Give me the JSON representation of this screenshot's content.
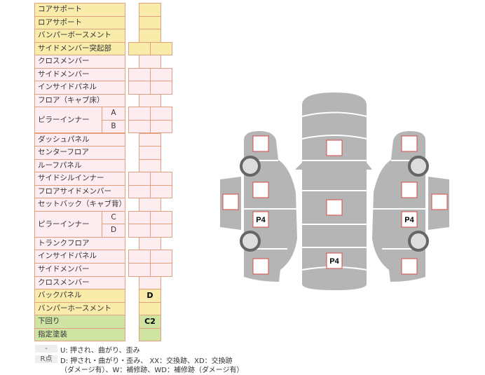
{
  "colors": {
    "yellow": "#f9ebaa",
    "pink": "#fdedf0",
    "green": "#cfe3a3",
    "border": "#e2a07e",
    "body": "#b5b5b5",
    "mark": "#d94a4a"
  },
  "rows": [
    {
      "label": "コアサポート",
      "color": "yellow",
      "cells": "single"
    },
    {
      "label": "ロアサポート",
      "color": "yellow",
      "cells": "single"
    },
    {
      "label": "バンパーボースメント",
      "color": "yellow",
      "cells": "single"
    },
    {
      "label": "サイドメンバー突起部",
      "color": "yellow",
      "cells": "double"
    },
    {
      "label": "クロスメンバー",
      "color": "pink",
      "cells": "single"
    },
    {
      "label": "サイドメンバー",
      "color": "pink",
      "cells": "double"
    },
    {
      "label": "インサイドパネル",
      "color": "pink",
      "cells": "double"
    },
    {
      "label": "フロア（キャブ床）",
      "color": "pink",
      "cells": "single"
    },
    {
      "label": "ピラーインナー",
      "sub": "A",
      "color": "pink",
      "cells": "double",
      "group_start": true
    },
    {
      "label": "",
      "sub": "B",
      "color": "pink",
      "cells": "double",
      "group_end": true
    },
    {
      "label": "ダッシュパネル",
      "color": "pink",
      "cells": "single"
    },
    {
      "label": "センターフロア",
      "color": "pink",
      "cells": "single"
    },
    {
      "label": "ルーフパネル",
      "color": "pink",
      "cells": "single"
    },
    {
      "label": "サイドシルインナー",
      "color": "pink",
      "cells": "double"
    },
    {
      "label": "フロアサイドメンバー",
      "color": "pink",
      "cells": "double"
    },
    {
      "label": "セットバック（キャブ背）",
      "color": "pink",
      "cells": "single"
    },
    {
      "label": "ピラーインナー",
      "sub": "C",
      "color": "pink",
      "cells": "double",
      "group_start": true
    },
    {
      "label": "",
      "sub": "D",
      "color": "pink",
      "cells": "double",
      "group_end": true
    },
    {
      "label": "トランクフロア",
      "color": "pink",
      "cells": "single"
    },
    {
      "label": "インサイドパネル",
      "color": "pink",
      "cells": "double"
    },
    {
      "label": "サイドメンバー",
      "color": "pink",
      "cells": "double"
    },
    {
      "label": "クロスメンバー",
      "color": "pink",
      "cells": "single"
    },
    {
      "label": "バックパネル",
      "color": "yellow",
      "cells": "single",
      "value": "D"
    },
    {
      "label": "バンパーホースメント",
      "color": "yellow",
      "cells": "single"
    },
    {
      "label": "下回り",
      "color": "green",
      "cells": "single",
      "value": "C2"
    },
    {
      "label": "指定塗装",
      "color": "green",
      "cells": "single"
    }
  ],
  "legend": [
    {
      "key": "-",
      "text": "U: 押され、曲がり、歪み"
    },
    {
      "key": "R点",
      "text": "D: 押され・曲がり・歪み、 XX：交換跡、XD：交換跡",
      "text2": "（ダメージ有）、W：補修跡、WD：補修跡（ダメージ有）"
    }
  ],
  "diagram": {
    "marks": [
      {
        "id": "left-front-fender",
        "value": ""
      },
      {
        "id": "left-front-door",
        "value": ""
      },
      {
        "id": "left-mirror",
        "value": ""
      },
      {
        "id": "left-rear-door",
        "value": "P4"
      },
      {
        "id": "left-rear-fender",
        "value": ""
      },
      {
        "id": "hood",
        "value": ""
      },
      {
        "id": "roof",
        "value": ""
      },
      {
        "id": "trunk",
        "value": "P4"
      },
      {
        "id": "right-front-fender",
        "value": ""
      },
      {
        "id": "right-front-door",
        "value": ""
      },
      {
        "id": "right-mirror",
        "value": ""
      },
      {
        "id": "right-rear-door",
        "value": "P4"
      },
      {
        "id": "right-rear-fender",
        "value": ""
      }
    ]
  }
}
